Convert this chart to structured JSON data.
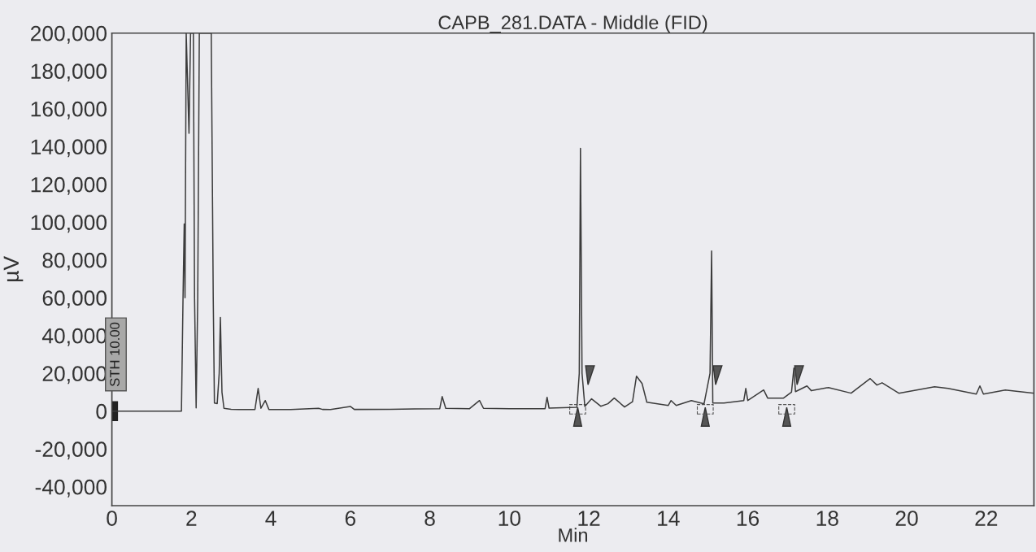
{
  "chart_data": {
    "type": "line",
    "title": "CAPB_281.DATA - Middle (FID)",
    "xlabel": "Min",
    "ylabel": "µV",
    "annotations": [
      "STH 10.00"
    ],
    "x": [
      0,
      1.0,
      1.75,
      1.79,
      1.82,
      1.84,
      1.87,
      1.94,
      1.98,
      2.05,
      2.08,
      2.12,
      2.16,
      2.2,
      2.5,
      2.55,
      2.58,
      2.65,
      2.7,
      2.73,
      2.77,
      2.82,
      3.0,
      3.2,
      3.6,
      3.68,
      3.75,
      3.86,
      3.95,
      4.5,
      5.2,
      5.3,
      5.5,
      6.0,
      6.1,
      7.0,
      8.25,
      8.31,
      8.4,
      9.0,
      9.25,
      9.35,
      10.0,
      10.9,
      10.95,
      11.0,
      11.7,
      11.76,
      11.79,
      11.83,
      11.9,
      12.07,
      12.3,
      12.48,
      12.64,
      12.9,
      13.1,
      13.2,
      13.34,
      13.46,
      14.0,
      14.07,
      14.2,
      14.58,
      14.9,
      15.05,
      15.09,
      15.12,
      15.4,
      15.9,
      15.95,
      16.0,
      16.4,
      16.5,
      16.9,
      17.1,
      17.16,
      17.2,
      17.49,
      17.6,
      18.03,
      18.6,
      19.08,
      19.25,
      19.38,
      19.8,
      20.7,
      21.04,
      21.75,
      21.84,
      21.93,
      22.48,
      23.2
    ],
    "series": [
      {
        "color": "#3c3c3c",
        "values": [
          0,
          0,
          0,
          60000,
          99000,
          60000,
          200000,
          147000,
          200000,
          200000,
          60000,
          1700,
          60000,
          200000,
          200000,
          60000,
          4300,
          4000,
          20000,
          49500,
          10000,
          1500,
          1000,
          800,
          900,
          12000,
          1500,
          5600,
          900,
          800,
          1500,
          900,
          800,
          2500,
          900,
          1000,
          1300,
          7700,
          1500,
          1300,
          5600,
          1500,
          1300,
          1300,
          7300,
          1600,
          2000,
          20000,
          139000,
          20000,
          2500,
          6500,
          2600,
          3900,
          6900,
          2200,
          5000,
          18500,
          14600,
          4700,
          3000,
          5600,
          3000,
          5600,
          3900,
          20000,
          84700,
          4300,
          4300,
          5600,
          12000,
          5600,
          11200,
          6900,
          6900,
          10000,
          22800,
          10300,
          13300,
          10800,
          12500,
          9500,
          17200,
          13800,
          15000,
          9500,
          12900,
          12000,
          9000,
          13300,
          9000,
          11200,
          9500
        ]
      }
    ],
    "xlim": [
      0,
      23.2
    ],
    "ylim": [
      -50000,
      200000
    ],
    "xticks": [
      0,
      2,
      4,
      6,
      8,
      10,
      12,
      14,
      16,
      18,
      20,
      22
    ],
    "yticks": [
      {
        "value": -40000,
        "label": "-40,000"
      },
      {
        "value": -20000,
        "label": "-20,000"
      },
      0,
      {
        "value": 20000,
        "label": "20,000"
      },
      {
        "value": 40000,
        "label": "40,000"
      },
      {
        "value": 60000,
        "label": "60,000"
      },
      {
        "value": 80000,
        "label": "80,000"
      },
      {
        "value": 100000,
        "label": "100,000"
      },
      {
        "value": 120000,
        "label": "120,000"
      },
      {
        "value": 140000,
        "label": "140,000"
      },
      {
        "value": 160000,
        "label": "160,000"
      },
      {
        "value": 180000,
        "label": "180,000"
      },
      {
        "value": 200000,
        "label": "200,000"
      }
    ],
    "grid": false,
    "legend": false,
    "marker": "none",
    "line_style": "solid"
  }
}
